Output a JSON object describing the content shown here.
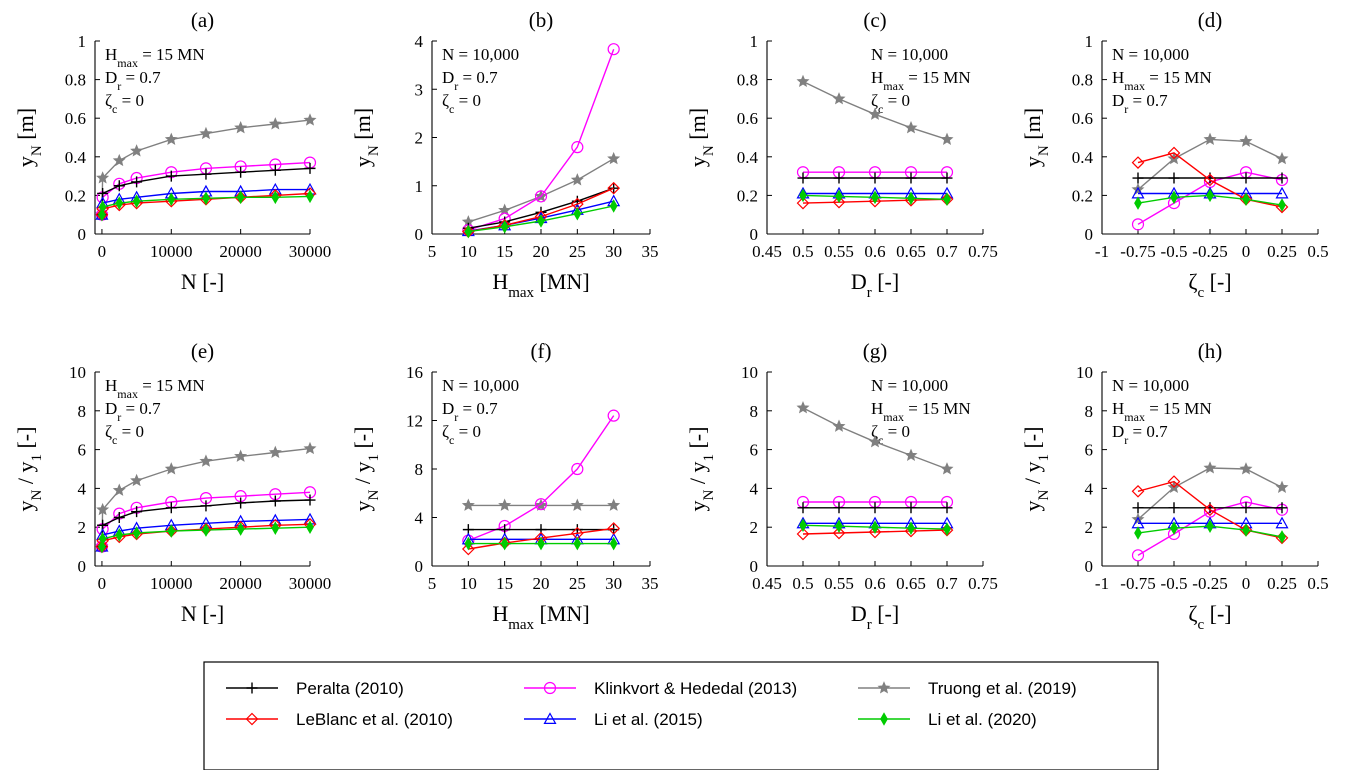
{
  "markers": {
    "Peralta (2010)": {
      "color": "#000000",
      "marker": "plus"
    },
    "LeBlanc et al. (2010)": {
      "color": "#ff0000",
      "marker": "diamond"
    },
    "Klinkvort & Hededal (2013)": {
      "color": "#ff00ff",
      "marker": "circle"
    },
    "Li et al. (2015)": {
      "color": "#0000ff",
      "marker": "triangle"
    },
    "Truong et al. (2019)": {
      "color": "#808080",
      "marker": "star"
    },
    "Li et al. (2020)": {
      "color": "#00cc00",
      "marker": "diamond-filled"
    }
  },
  "legend": {
    "entries": [
      "Peralta (2010)",
      "Klinkvort & Hededal (2013)",
      "Truong et al. (2019)",
      "LeBlanc et al. (2010)",
      "Li et al. (2015)",
      "Li et al. (2020)"
    ]
  },
  "chart_data": [
    {
      "panel": "(a)",
      "type": "line",
      "xlabel": "N [-]",
      "ylabel": "y_N [m]",
      "xlim": [
        -1000,
        30000
      ],
      "ylim": [
        0,
        1
      ],
      "xticks": [
        0,
        10000,
        20000,
        30000
      ],
      "yticks": [
        0,
        0.2,
        0.4,
        0.6,
        0.8,
        1
      ],
      "annotations": [
        "H_max = 15 MN",
        "D_r = 0.7",
        "ζ_c = 0"
      ],
      "x": [
        1,
        100,
        2500,
        5000,
        10000,
        15000,
        20000,
        25000,
        30000
      ],
      "series": [
        {
          "name": "Peralta (2010)",
          "values": [
            0.1,
            0.21,
            0.25,
            0.27,
            0.3,
            0.31,
            0.32,
            0.33,
            0.34
          ]
        },
        {
          "name": "LeBlanc et al. (2010)",
          "values": [
            0.1,
            0.13,
            0.15,
            0.16,
            0.17,
            0.18,
            0.19,
            0.2,
            0.21
          ]
        },
        {
          "name": "Klinkvort & Hededal (2013)",
          "values": [
            0.1,
            0.19,
            0.26,
            0.29,
            0.32,
            0.34,
            0.35,
            0.36,
            0.37
          ]
        },
        {
          "name": "Li et al. (2015)",
          "values": [
            0.1,
            0.16,
            0.18,
            0.19,
            0.21,
            0.22,
            0.22,
            0.23,
            0.23
          ]
        },
        {
          "name": "Truong et al. (2019)",
          "values": [
            0.1,
            0.29,
            0.38,
            0.43,
            0.49,
            0.52,
            0.55,
            0.57,
            0.59
          ]
        },
        {
          "name": "Li et al. (2020)",
          "values": [
            0.1,
            0.14,
            0.16,
            0.17,
            0.18,
            0.185,
            0.19,
            0.19,
            0.195
          ]
        }
      ]
    },
    {
      "panel": "(b)",
      "type": "line",
      "xlabel": "H_max [MN]",
      "ylabel": "y_N [m]",
      "xlim": [
        5,
        35
      ],
      "ylim": [
        0,
        4
      ],
      "xticks": [
        5,
        10,
        15,
        20,
        25,
        30,
        35
      ],
      "yticks": [
        0,
        1,
        2,
        3,
        4
      ],
      "annotations": [
        "N = 10,000",
        "D_r = 0.7",
        "ζ_c = 0"
      ],
      "x": [
        10,
        15,
        20,
        25,
        30
      ],
      "series": [
        {
          "name": "Peralta (2010)",
          "values": [
            0.12,
            0.25,
            0.45,
            0.68,
            0.95
          ]
        },
        {
          "name": "LeBlanc et al. (2010)",
          "values": [
            0.05,
            0.18,
            0.36,
            0.62,
            0.95
          ]
        },
        {
          "name": "Klinkvort & Hededal (2013)",
          "values": [
            0.08,
            0.32,
            0.78,
            1.8,
            3.83
          ]
        },
        {
          "name": "Li et al. (2015)",
          "values": [
            0.06,
            0.18,
            0.33,
            0.5,
            0.68
          ]
        },
        {
          "name": "Truong et al. (2019)",
          "values": [
            0.25,
            0.49,
            0.78,
            1.12,
            1.56
          ]
        },
        {
          "name": "Li et al. (2020)",
          "values": [
            0.05,
            0.15,
            0.27,
            0.42,
            0.58
          ]
        }
      ]
    },
    {
      "panel": "(c)",
      "type": "line",
      "xlabel": "D_r [-]",
      "ylabel": "y_N [m]",
      "xlim": [
        0.45,
        0.75
      ],
      "ylim": [
        0,
        1
      ],
      "xticks": [
        0.45,
        0.5,
        0.55,
        0.6,
        0.65,
        0.7,
        0.75
      ],
      "yticks": [
        0,
        0.2,
        0.4,
        0.6,
        0.8,
        1
      ],
      "annotations": [
        "N = 10,000",
        "H_max = 15 MN",
        "ζ_c = 0"
      ],
      "x": [
        0.5,
        0.55,
        0.6,
        0.65,
        0.7
      ],
      "series": [
        {
          "name": "Peralta (2010)",
          "values": [
            0.29,
            0.29,
            0.29,
            0.29,
            0.29
          ]
        },
        {
          "name": "LeBlanc et al. (2010)",
          "values": [
            0.16,
            0.165,
            0.17,
            0.175,
            0.18
          ]
        },
        {
          "name": "Klinkvort & Hededal (2013)",
          "values": [
            0.32,
            0.32,
            0.32,
            0.32,
            0.32
          ]
        },
        {
          "name": "Li et al. (2015)",
          "values": [
            0.21,
            0.21,
            0.21,
            0.21,
            0.21
          ]
        },
        {
          "name": "Truong et al. (2019)",
          "values": [
            0.79,
            0.7,
            0.62,
            0.55,
            0.49
          ]
        },
        {
          "name": "Li et al. (2020)",
          "values": [
            0.2,
            0.195,
            0.19,
            0.185,
            0.18
          ]
        }
      ]
    },
    {
      "panel": "(d)",
      "type": "line",
      "xlabel": "ζ_c [-]",
      "ylabel": "y_N [m]",
      "xlim": [
        -1,
        0.5
      ],
      "ylim": [
        0,
        1
      ],
      "xticks": [
        -1,
        -0.75,
        -0.5,
        -0.25,
        0,
        0.25,
        0.5
      ],
      "xticklabels": [
        "-1",
        "-0.75",
        "-0.5",
        "-0.25",
        "0",
        "0.25",
        "0.5"
      ],
      "yticks": [
        0,
        0.2,
        0.4,
        0.6,
        0.8,
        1
      ],
      "annotations": [
        "N = 10,000",
        "H_max = 15 MN",
        "D_r = 0.7"
      ],
      "x": [
        -0.75,
        -0.5,
        -0.25,
        0,
        0.25
      ],
      "series": [
        {
          "name": "Peralta (2010)",
          "values": [
            0.29,
            0.29,
            0.29,
            0.29,
            0.29
          ]
        },
        {
          "name": "LeBlanc et al. (2010)",
          "values": [
            0.37,
            0.42,
            0.28,
            0.18,
            0.14
          ]
        },
        {
          "name": "Klinkvort & Hededal (2013)",
          "values": [
            0.05,
            0.16,
            0.27,
            0.32,
            0.28
          ]
        },
        {
          "name": "Li et al. (2015)",
          "values": [
            0.21,
            0.21,
            0.21,
            0.21,
            0.21
          ]
        },
        {
          "name": "Truong et al. (2019)",
          "values": [
            0.23,
            0.39,
            0.49,
            0.48,
            0.39
          ]
        },
        {
          "name": "Li et al. (2020)",
          "values": [
            0.16,
            0.19,
            0.2,
            0.18,
            0.15
          ]
        }
      ]
    },
    {
      "panel": "(e)",
      "type": "line",
      "xlabel": "N [-]",
      "ylabel": "y_N / y_1 [-]",
      "xlim": [
        -1000,
        30000
      ],
      "ylim": [
        0,
        10
      ],
      "xticks": [
        0,
        10000,
        20000,
        30000
      ],
      "yticks": [
        0,
        2,
        4,
        6,
        8,
        10
      ],
      "annotations": [
        "H_max = 15 MN",
        "D_r = 0.7",
        "ζ_c = 0"
      ],
      "x": [
        1,
        100,
        2500,
        5000,
        10000,
        15000,
        20000,
        25000,
        30000
      ],
      "series": [
        {
          "name": "Peralta (2010)",
          "values": [
            1.0,
            2.1,
            2.5,
            2.8,
            3.0,
            3.1,
            3.25,
            3.35,
            3.4
          ]
        },
        {
          "name": "LeBlanc et al. (2010)",
          "values": [
            1.0,
            1.3,
            1.5,
            1.65,
            1.8,
            1.9,
            2.0,
            2.1,
            2.15
          ]
        },
        {
          "name": "Klinkvort & Hededal (2013)",
          "values": [
            1.0,
            1.9,
            2.7,
            3.0,
            3.3,
            3.5,
            3.6,
            3.7,
            3.8
          ]
        },
        {
          "name": "Li et al. (2015)",
          "values": [
            1.0,
            1.6,
            1.8,
            1.95,
            2.1,
            2.2,
            2.3,
            2.35,
            2.4
          ]
        },
        {
          "name": "Truong et al. (2019)",
          "values": [
            1.0,
            2.9,
            3.9,
            4.4,
            5.0,
            5.4,
            5.65,
            5.85,
            6.05
          ]
        },
        {
          "name": "Li et al. (2020)",
          "values": [
            1.0,
            1.4,
            1.6,
            1.7,
            1.8,
            1.85,
            1.9,
            1.95,
            2.0
          ]
        }
      ]
    },
    {
      "panel": "(f)",
      "type": "line",
      "xlabel": "H_max [MN]",
      "ylabel": "y_N / y_1 [-]",
      "xlim": [
        5,
        35
      ],
      "ylim": [
        0,
        16
      ],
      "xticks": [
        5,
        10,
        15,
        20,
        25,
        30,
        35
      ],
      "yticks": [
        0,
        4,
        8,
        12,
        16
      ],
      "annotations": [
        "N = 10,000",
        "D_r = 0.7",
        "ζ_c = 0"
      ],
      "x": [
        10,
        15,
        20,
        25,
        30
      ],
      "series": [
        {
          "name": "Peralta (2010)",
          "values": [
            3.0,
            3.0,
            3.0,
            3.0,
            3.0
          ]
        },
        {
          "name": "LeBlanc et al. (2010)",
          "values": [
            1.4,
            1.9,
            2.3,
            2.7,
            3.1
          ]
        },
        {
          "name": "Klinkvort & Hededal (2013)",
          "values": [
            2.1,
            3.3,
            5.1,
            8.0,
            12.4
          ]
        },
        {
          "name": "Li et al. (2015)",
          "values": [
            2.2,
            2.2,
            2.2,
            2.2,
            2.2
          ]
        },
        {
          "name": "Truong et al. (2019)",
          "values": [
            5.0,
            5.0,
            5.0,
            5.0,
            5.0
          ]
        },
        {
          "name": "Li et al. (2020)",
          "values": [
            1.85,
            1.85,
            1.85,
            1.85,
            1.85
          ]
        }
      ]
    },
    {
      "panel": "(g)",
      "type": "line",
      "xlabel": "D_r [-]",
      "ylabel": "y_N / y_1 [-]",
      "xlim": [
        0.45,
        0.75
      ],
      "ylim": [
        0,
        10
      ],
      "xticks": [
        0.45,
        0.5,
        0.55,
        0.6,
        0.65,
        0.7,
        0.75
      ],
      "yticks": [
        0,
        2,
        4,
        6,
        8,
        10
      ],
      "annotations": [
        "N = 10,000",
        "H_max = 15 MN",
        "ζ_c = 0"
      ],
      "x": [
        0.5,
        0.55,
        0.6,
        0.65,
        0.7
      ],
      "series": [
        {
          "name": "Peralta (2010)",
          "values": [
            3.0,
            3.0,
            3.0,
            3.0,
            3.0
          ]
        },
        {
          "name": "LeBlanc et al. (2010)",
          "values": [
            1.65,
            1.7,
            1.75,
            1.8,
            1.85
          ]
        },
        {
          "name": "Klinkvort & Hededal (2013)",
          "values": [
            3.3,
            3.3,
            3.3,
            3.3,
            3.3
          ]
        },
        {
          "name": "Li et al. (2015)",
          "values": [
            2.2,
            2.2,
            2.2,
            2.2,
            2.2
          ]
        },
        {
          "name": "Truong et al. (2019)",
          "values": [
            8.15,
            7.2,
            6.4,
            5.7,
            5.0
          ]
        },
        {
          "name": "Li et al. (2020)",
          "values": [
            2.1,
            2.05,
            2.0,
            1.95,
            1.9
          ]
        }
      ]
    },
    {
      "panel": "(h)",
      "type": "line",
      "xlabel": "ζ_c [-]",
      "ylabel": "y_N / y_1 [-]",
      "xlim": [
        -1,
        0.5
      ],
      "ylim": [
        0,
        10
      ],
      "xticks": [
        -1,
        -0.75,
        -0.5,
        -0.25,
        0,
        0.25,
        0.5
      ],
      "xticklabels": [
        "-1",
        "-0.75",
        "-0.5",
        "-0.25",
        "0",
        "0.25",
        "0.5"
      ],
      "yticks": [
        0,
        2,
        4,
        6,
        8,
        10
      ],
      "annotations": [
        "N = 10,000",
        "H_max = 15 MN",
        "D_r = 0.7"
      ],
      "x": [
        -0.75,
        -0.5,
        -0.25,
        0,
        0.25
      ],
      "series": [
        {
          "name": "Peralta (2010)",
          "values": [
            3.0,
            3.0,
            3.0,
            3.0,
            3.0
          ]
        },
        {
          "name": "LeBlanc et al. (2010)",
          "values": [
            3.85,
            4.35,
            2.9,
            1.85,
            1.45
          ]
        },
        {
          "name": "Klinkvort & Hededal (2013)",
          "values": [
            0.55,
            1.65,
            2.8,
            3.3,
            2.9
          ]
        },
        {
          "name": "Li et al. (2015)",
          "values": [
            2.2,
            2.2,
            2.2,
            2.2,
            2.2
          ]
        },
        {
          "name": "Truong et al. (2019)",
          "values": [
            2.4,
            4.05,
            5.05,
            5.0,
            4.05
          ]
        },
        {
          "name": "Li et al. (2020)",
          "values": [
            1.7,
            1.95,
            2.05,
            1.85,
            1.5
          ]
        }
      ]
    }
  ]
}
